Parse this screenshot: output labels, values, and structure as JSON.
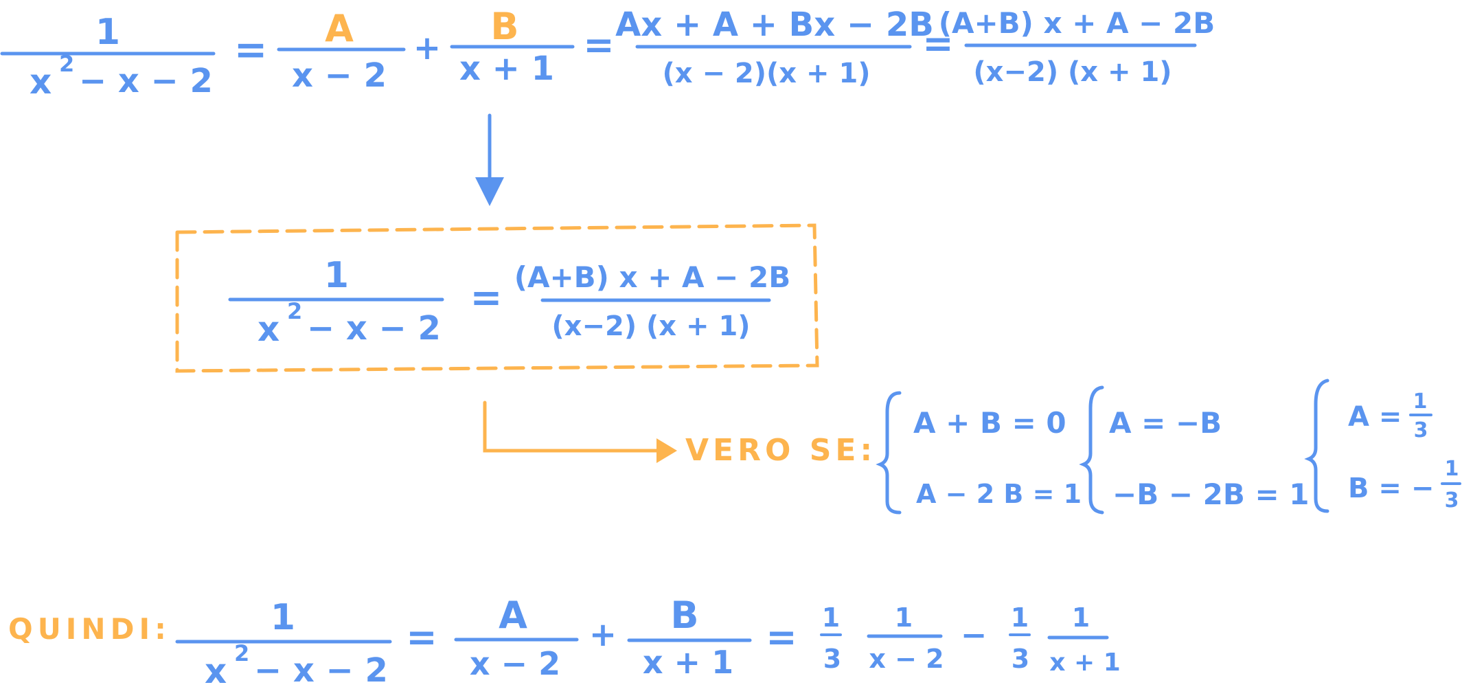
{
  "colors": {
    "blue": "#5a94ef",
    "orange": "#fdb44e"
  },
  "row1": {
    "lhs_num": "1",
    "lhs_den_x": "x",
    "lhs_den_exp": "2",
    "lhs_den_rest": "− x − 2",
    "eq1": "=",
    "a_num": "A",
    "a_den": "x − 2",
    "plus": "+",
    "b_num": "B",
    "b_den": "x + 1",
    "eq2": "=",
    "c_num": "Ax + A + Bx − 2B",
    "c_den": "(x − 2)(x + 1)",
    "eq3": "=",
    "d_num": "(A+B) x + A − 2B",
    "d_den": "(x−2) (x + 1)"
  },
  "box": {
    "lhs_num": "1",
    "lhs_den_x": "x",
    "lhs_den_exp": "2",
    "lhs_den_rest": "− x − 2",
    "eq": "=",
    "rhs_num": "(A+B) x + A − 2B",
    "rhs_den": "(x−2) (x + 1)"
  },
  "condition": {
    "label": "VERO SE:",
    "sys1": [
      "A + B = 0",
      "A − 2 B = 1"
    ],
    "sys2": [
      "A = −B",
      "−B − 2B = 1"
    ],
    "sys3_a": "A =",
    "sys3_a_num": "1",
    "sys3_a_den": "3",
    "sys3_b": "B = −",
    "sys3_b_num": "1",
    "sys3_b_den": "3"
  },
  "conclusion": {
    "label": "QUINDI:",
    "lhs_num": "1",
    "lhs_den_x": "x",
    "lhs_den_exp": "2",
    "lhs_den_rest": "− x − 2",
    "eq1": "=",
    "a_num": "A",
    "a_den": "x − 2",
    "plus": "+",
    "b_num": "B",
    "b_den": "x + 1",
    "eq2": "=",
    "c1_num": "1",
    "c1_den": "3",
    "f1_num": "1",
    "f1_den": "x − 2",
    "minus": "−",
    "c2_num": "1",
    "c2_den": "3",
    "f2_num": "1",
    "f2_den": "x + 1"
  }
}
